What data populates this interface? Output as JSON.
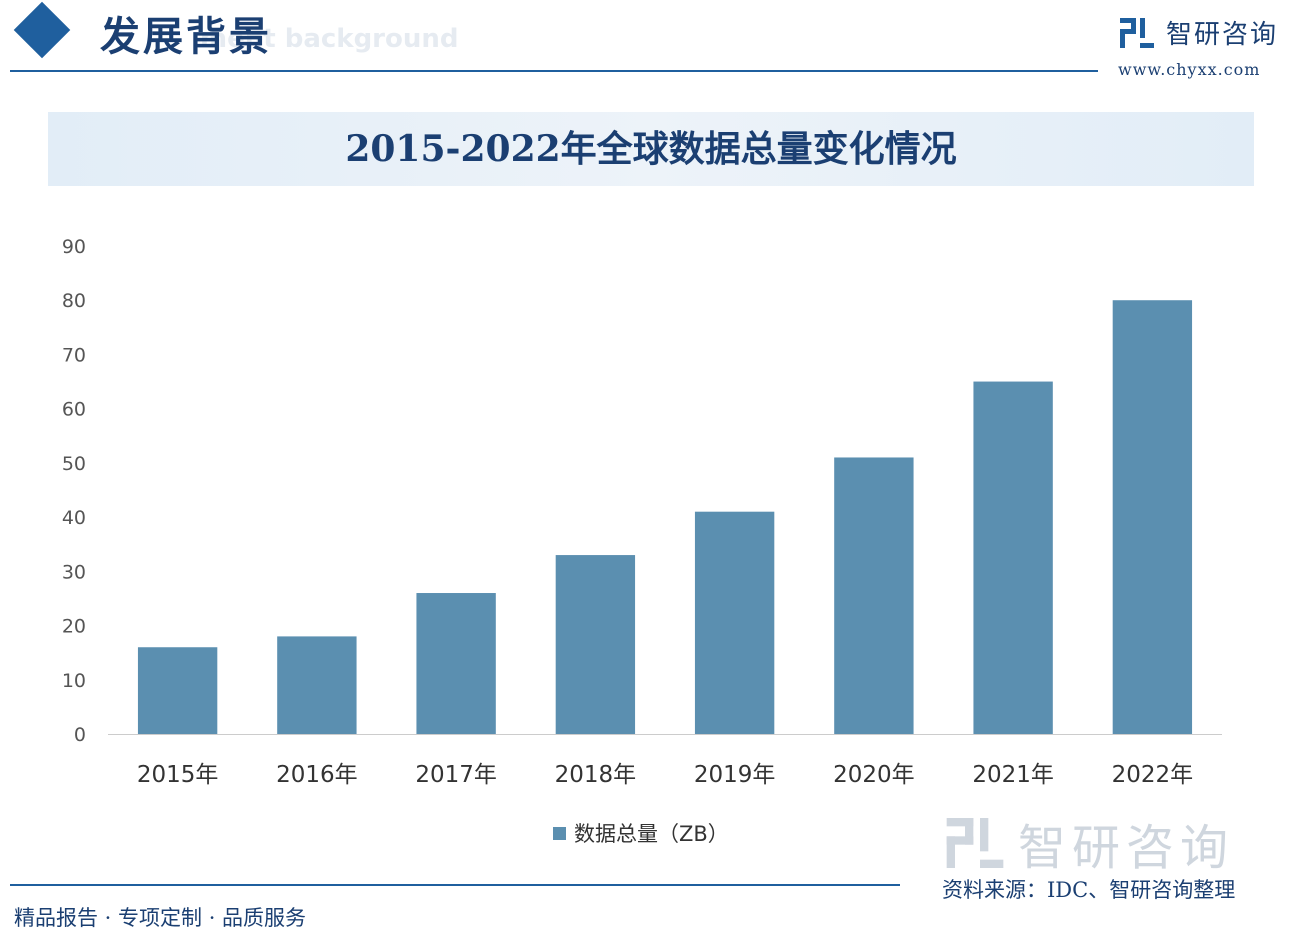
{
  "header": {
    "title": "发展背景",
    "subtitle_watermark": "ment background"
  },
  "brand": {
    "name": "智研咨询",
    "url": "www.chyxx.com"
  },
  "chart_data": {
    "type": "bar",
    "title": "2015-2022年全球数据总量变化情况",
    "categories": [
      "2015年",
      "2016年",
      "2017年",
      "2018年",
      "2019年",
      "2020年",
      "2021年",
      "2022年"
    ],
    "series": [
      {
        "name": "数据总量（ZB）",
        "values": [
          16,
          18,
          26,
          33,
          41,
          51,
          65,
          80
        ]
      }
    ],
    "ylim": [
      0,
      90
    ],
    "yticks": [
      0,
      10,
      20,
      30,
      40,
      50,
      60,
      70,
      80,
      90
    ],
    "grid": false,
    "legend": "bottom",
    "colors": {
      "bar": "#5b8fb0",
      "axis": "#cccccc"
    }
  },
  "footer": {
    "slogan": "精品报告 · 专项定制 · 品质服务",
    "source": "资料来源：IDC、智研咨询整理"
  },
  "watermark": {
    "text": "智研咨询"
  }
}
